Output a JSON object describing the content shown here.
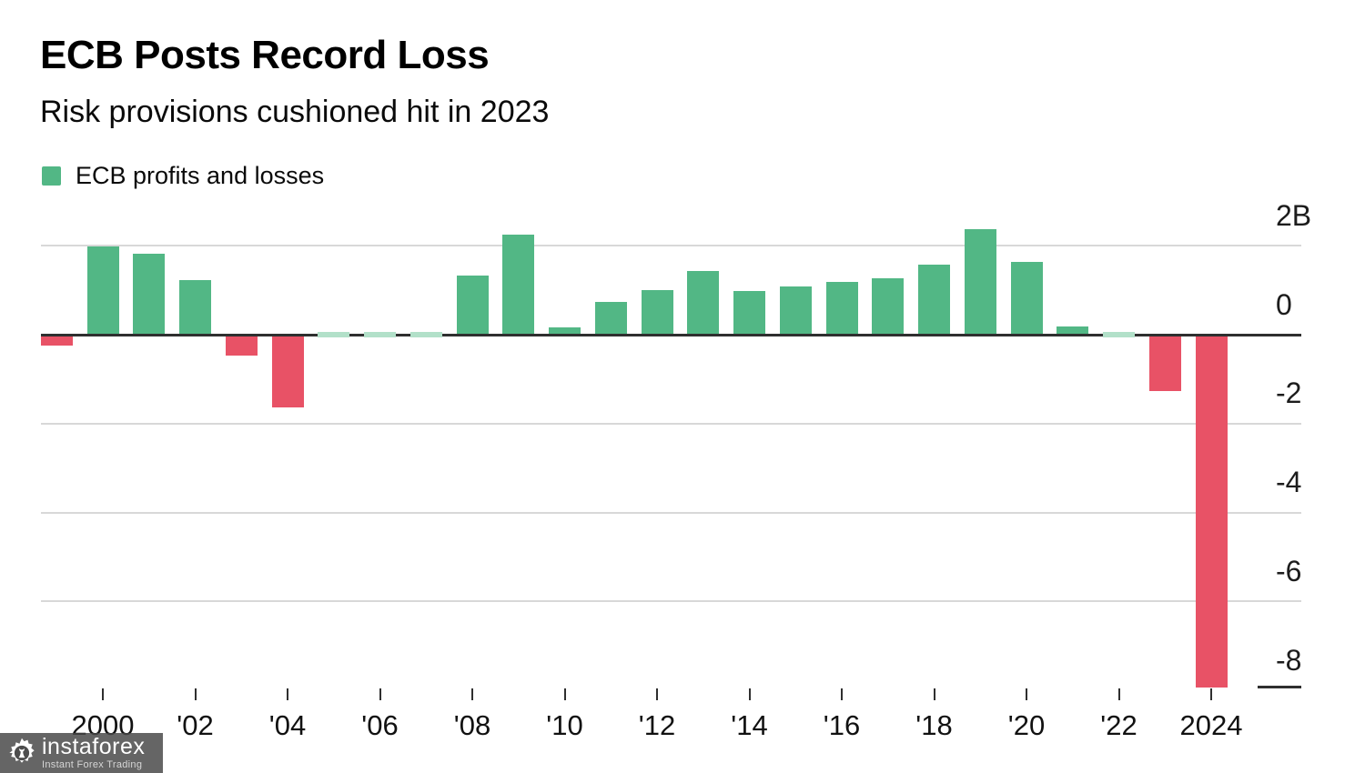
{
  "header": {
    "title": "ECB Posts Record Loss",
    "subtitle": "Risk provisions cushioned hit in 2023"
  },
  "legend": {
    "label": "ECB profits and losses",
    "swatch_color": "#52b785"
  },
  "chart_data": {
    "type": "bar",
    "title": "ECB Posts Record Loss",
    "subtitle": "Risk provisions cushioned hit in 2023",
    "series_name": "ECB profits and losses",
    "unit": "billions (B)",
    "x": [
      1999,
      2000,
      2001,
      2002,
      2003,
      2004,
      2005,
      2006,
      2007,
      2008,
      2009,
      2010,
      2011,
      2012,
      2013,
      2014,
      2015,
      2016,
      2017,
      2018,
      2019,
      2020,
      2021,
      2022,
      2023,
      2024
    ],
    "values": [
      -0.25,
      1.99,
      1.82,
      1.22,
      -0.48,
      -1.64,
      0,
      0,
      0,
      1.32,
      2.25,
      0.17,
      0.73,
      1.0,
      1.44,
      0.99,
      1.08,
      1.19,
      1.27,
      1.57,
      2.37,
      1.64,
      0.19,
      0,
      -1.27,
      -7.94
    ],
    "ylim": [
      -8.8,
      2.6
    ],
    "yticks": [
      {
        "value": 2,
        "label": "2B"
      },
      {
        "value": 0,
        "label": "0"
      },
      {
        "value": -2,
        "label": "-2"
      },
      {
        "value": -4,
        "label": "-4"
      },
      {
        "value": -6,
        "label": "-6"
      },
      {
        "value": -8,
        "label": "-8"
      }
    ],
    "xticks": [
      {
        "year": 2000,
        "label": "2000"
      },
      {
        "year": 2002,
        "label": "'02"
      },
      {
        "year": 2004,
        "label": "'04"
      },
      {
        "year": 2006,
        "label": "'06"
      },
      {
        "year": 2008,
        "label": "'08"
      },
      {
        "year": 2010,
        "label": "'10"
      },
      {
        "year": 2012,
        "label": "'12"
      },
      {
        "year": 2014,
        "label": "'14"
      },
      {
        "year": 2016,
        "label": "'16"
      },
      {
        "year": 2018,
        "label": "'18"
      },
      {
        "year": 2020,
        "label": "'20"
      },
      {
        "year": 2022,
        "label": "'22"
      },
      {
        "year": 2024,
        "label": "2024"
      }
    ],
    "colors": {
      "positive": "#52b785",
      "negative": "#e85266",
      "zero_bar": "#b2e0c9",
      "grid": "#d8d8d8",
      "axis": "#2f2f2f",
      "tick": "#2f2f2f"
    },
    "legend_position": "top-left",
    "grid": true
  },
  "watermark": {
    "brand": "instaforex",
    "tagline": "Instant Forex Trading"
  }
}
